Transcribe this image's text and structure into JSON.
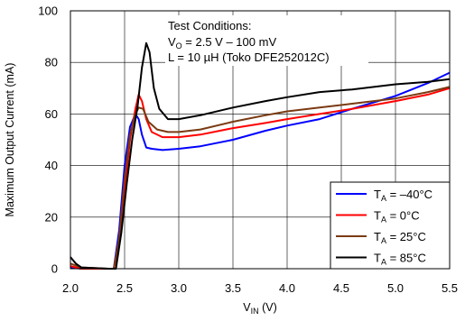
{
  "chart_data": {
    "type": "line",
    "ylabel": "Maximum Output Current (mA)",
    "xlabel_main": "V",
    "xlabel_sub": "IN",
    "xlabel_unit": " (V)",
    "xlim": [
      2.0,
      5.5
    ],
    "ylim": [
      0,
      100
    ],
    "xticks": [
      "2.0",
      "2.5",
      "3.0",
      "3.5",
      "4.0",
      "4.5",
      "5.0",
      "5.5"
    ],
    "yticks": [
      "0",
      "20",
      "40",
      "60",
      "80",
      "100"
    ],
    "grid": true,
    "annotation": {
      "title": "Test Conditions:",
      "line2_main": "V",
      "line2_sub": "O",
      "line2_rest": " = 2.5 V – 100 mV",
      "line3": "L = 10 µH (Toko DFE252012C)"
    },
    "legend_position": "bottom-right",
    "series": [
      {
        "name": "–40°C",
        "color": "#0000ff",
        "points": [
          [
            2.0,
            0.5
          ],
          [
            2.1,
            0
          ],
          [
            2.35,
            0
          ],
          [
            2.4,
            0
          ],
          [
            2.45,
            15
          ],
          [
            2.5,
            40
          ],
          [
            2.55,
            55
          ],
          [
            2.6,
            60
          ],
          [
            2.63,
            58
          ],
          [
            2.66,
            52
          ],
          [
            2.7,
            47
          ],
          [
            2.75,
            46.5
          ],
          [
            2.85,
            46
          ],
          [
            3.0,
            46.5
          ],
          [
            3.2,
            47.5
          ],
          [
            3.5,
            50
          ],
          [
            3.8,
            53.5
          ],
          [
            4.0,
            55.5
          ],
          [
            4.3,
            58
          ],
          [
            4.6,
            62
          ],
          [
            5.0,
            67
          ],
          [
            5.3,
            72
          ],
          [
            5.5,
            76
          ]
        ]
      },
      {
        "name": "0°C",
        "color": "#ff0000",
        "points": [
          [
            2.0,
            1
          ],
          [
            2.1,
            0
          ],
          [
            2.35,
            0
          ],
          [
            2.4,
            0
          ],
          [
            2.45,
            10
          ],
          [
            2.5,
            30
          ],
          [
            2.55,
            50
          ],
          [
            2.6,
            62
          ],
          [
            2.63,
            67.5
          ],
          [
            2.66,
            65
          ],
          [
            2.7,
            58
          ],
          [
            2.75,
            53
          ],
          [
            2.85,
            51
          ],
          [
            3.0,
            51
          ],
          [
            3.2,
            52
          ],
          [
            3.5,
            54.5
          ],
          [
            3.8,
            56.5
          ],
          [
            4.0,
            58
          ],
          [
            4.3,
            60
          ],
          [
            4.6,
            62
          ],
          [
            5.0,
            65
          ],
          [
            5.3,
            67.5
          ],
          [
            5.5,
            70
          ]
        ]
      },
      {
        "name": "25°C",
        "color": "#7a3a12",
        "points": [
          [
            2.0,
            2
          ],
          [
            2.1,
            0.5
          ],
          [
            2.35,
            0
          ],
          [
            2.4,
            0
          ],
          [
            2.45,
            12
          ],
          [
            2.5,
            35
          ],
          [
            2.55,
            52
          ],
          [
            2.6,
            60
          ],
          [
            2.63,
            62.5
          ],
          [
            2.67,
            62
          ],
          [
            2.72,
            57
          ],
          [
            2.8,
            54
          ],
          [
            2.9,
            53
          ],
          [
            3.0,
            53
          ],
          [
            3.2,
            54
          ],
          [
            3.5,
            57
          ],
          [
            3.8,
            59.5
          ],
          [
            4.0,
            61
          ],
          [
            4.3,
            62.5
          ],
          [
            4.6,
            64
          ],
          [
            5.0,
            66
          ],
          [
            5.3,
            68.5
          ],
          [
            5.5,
            70.5
          ]
        ]
      },
      {
        "name": "85°C",
        "color": "#000000",
        "points": [
          [
            2.0,
            4.5
          ],
          [
            2.05,
            2
          ],
          [
            2.1,
            0.5
          ],
          [
            2.35,
            0
          ],
          [
            2.42,
            0
          ],
          [
            2.47,
            14
          ],
          [
            2.52,
            33
          ],
          [
            2.57,
            50
          ],
          [
            2.62,
            63
          ],
          [
            2.66,
            78
          ],
          [
            2.7,
            87.5
          ],
          [
            2.73,
            84
          ],
          [
            2.77,
            70
          ],
          [
            2.82,
            62
          ],
          [
            2.9,
            58
          ],
          [
            3.0,
            58
          ],
          [
            3.2,
            59.5
          ],
          [
            3.5,
            62.5
          ],
          [
            3.8,
            65
          ],
          [
            4.0,
            66.5
          ],
          [
            4.3,
            68.5
          ],
          [
            4.6,
            69.5
          ],
          [
            5.0,
            71.5
          ],
          [
            5.3,
            72.5
          ],
          [
            5.5,
            73.5
          ]
        ]
      }
    ]
  },
  "legend_label_main": "T",
  "legend_label_sub": "A",
  "legend_label_eq": " = "
}
